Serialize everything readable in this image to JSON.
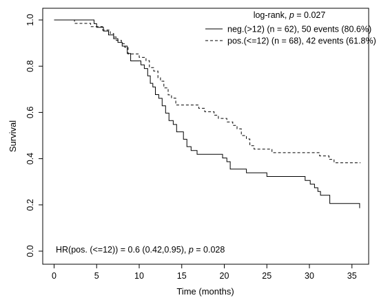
{
  "chart_data": {
    "type": "line",
    "subtype": "kaplan-meier",
    "xlabel": "Time (months)",
    "ylabel": "Survival",
    "xlim": [
      0,
      36
    ],
    "ylim": [
      0,
      1
    ],
    "x_ticks": [
      "0",
      "5",
      "10",
      "15",
      "20",
      "25",
      "30",
      "35"
    ],
    "y_ticks": [
      "0.0",
      "0.2",
      "0.4",
      "0.6",
      "0.8",
      "1.0"
    ],
    "grid": false,
    "legend": {
      "position": "top-right",
      "title_prefix": "log-rank,",
      "title_p": "p",
      "title_value": "= 0.027"
    },
    "annotation": {
      "prefix": "HR(pos. (<=12)) = 0.6 (0.42,0.95),",
      "p": "p",
      "value": "= 0.028"
    },
    "series": [
      {
        "name": "neg.(>12) (n = 62), 50 events (80.6%)",
        "line_style": "solid",
        "points": [
          [
            0,
            1.0
          ],
          [
            4.7,
            1.0
          ],
          [
            4.7,
            0.984
          ],
          [
            5.0,
            0.984
          ],
          [
            5.0,
            0.968
          ],
          [
            5.8,
            0.968
          ],
          [
            5.8,
            0.952
          ],
          [
            6.4,
            0.952
          ],
          [
            6.4,
            0.935
          ],
          [
            7.0,
            0.935
          ],
          [
            7.0,
            0.919
          ],
          [
            7.5,
            0.919
          ],
          [
            7.5,
            0.903
          ],
          [
            8.0,
            0.903
          ],
          [
            8.0,
            0.887
          ],
          [
            8.6,
            0.887
          ],
          [
            8.6,
            0.855
          ],
          [
            9.0,
            0.855
          ],
          [
            9.0,
            0.823
          ],
          [
            10.2,
            0.823
          ],
          [
            10.2,
            0.806
          ],
          [
            10.6,
            0.806
          ],
          [
            10.6,
            0.79
          ],
          [
            11.0,
            0.79
          ],
          [
            11.0,
            0.758
          ],
          [
            11.3,
            0.758
          ],
          [
            11.3,
            0.726
          ],
          [
            11.6,
            0.726
          ],
          [
            11.6,
            0.71
          ],
          [
            11.9,
            0.71
          ],
          [
            11.9,
            0.677
          ],
          [
            12.3,
            0.677
          ],
          [
            12.3,
            0.661
          ],
          [
            12.7,
            0.661
          ],
          [
            12.7,
            0.629
          ],
          [
            13.1,
            0.629
          ],
          [
            13.1,
            0.597
          ],
          [
            13.5,
            0.597
          ],
          [
            13.5,
            0.565
          ],
          [
            14.0,
            0.565
          ],
          [
            14.0,
            0.548
          ],
          [
            14.4,
            0.548
          ],
          [
            14.4,
            0.516
          ],
          [
            15.2,
            0.516
          ],
          [
            15.2,
            0.484
          ],
          [
            15.6,
            0.484
          ],
          [
            15.6,
            0.452
          ],
          [
            16.1,
            0.452
          ],
          [
            16.1,
            0.435
          ],
          [
            16.8,
            0.435
          ],
          [
            16.8,
            0.419
          ],
          [
            19.8,
            0.419
          ],
          [
            19.8,
            0.403
          ],
          [
            20.3,
            0.403
          ],
          [
            20.3,
            0.387
          ],
          [
            20.7,
            0.387
          ],
          [
            20.7,
            0.355
          ],
          [
            22.6,
            0.355
          ],
          [
            22.6,
            0.339
          ],
          [
            25.0,
            0.339
          ],
          [
            25.0,
            0.323
          ],
          [
            29.5,
            0.323
          ],
          [
            29.5,
            0.306
          ],
          [
            30.1,
            0.306
          ],
          [
            30.1,
            0.29
          ],
          [
            30.6,
            0.29
          ],
          [
            30.6,
            0.274
          ],
          [
            31.0,
            0.274
          ],
          [
            31.0,
            0.258
          ],
          [
            31.3,
            0.258
          ],
          [
            31.3,
            0.242
          ],
          [
            32.4,
            0.242
          ],
          [
            32.4,
            0.206
          ],
          [
            35.9,
            0.206
          ],
          [
            35.9,
            0.186
          ]
        ]
      },
      {
        "name": "pos.(<=12) (n = 68), 42 events (61.8%)",
        "line_style": "dashed",
        "points": [
          [
            0,
            1.0
          ],
          [
            2.4,
            1.0
          ],
          [
            2.4,
            0.985
          ],
          [
            4.3,
            0.985
          ],
          [
            4.3,
            0.971
          ],
          [
            5.7,
            0.971
          ],
          [
            5.7,
            0.956
          ],
          [
            6.6,
            0.956
          ],
          [
            6.6,
            0.941
          ],
          [
            7.0,
            0.941
          ],
          [
            7.0,
            0.926
          ],
          [
            7.3,
            0.926
          ],
          [
            7.3,
            0.912
          ],
          [
            7.9,
            0.912
          ],
          [
            7.9,
            0.897
          ],
          [
            8.3,
            0.897
          ],
          [
            8.3,
            0.882
          ],
          [
            8.7,
            0.882
          ],
          [
            8.7,
            0.853
          ],
          [
            10.0,
            0.853
          ],
          [
            10.0,
            0.838
          ],
          [
            10.8,
            0.838
          ],
          [
            10.8,
            0.824
          ],
          [
            11.2,
            0.824
          ],
          [
            11.2,
            0.794
          ],
          [
            11.7,
            0.794
          ],
          [
            11.7,
            0.779
          ],
          [
            12.2,
            0.779
          ],
          [
            12.2,
            0.75
          ],
          [
            12.5,
            0.75
          ],
          [
            12.5,
            0.735
          ],
          [
            12.9,
            0.735
          ],
          [
            12.9,
            0.706
          ],
          [
            13.4,
            0.706
          ],
          [
            13.4,
            0.676
          ],
          [
            13.8,
            0.676
          ],
          [
            13.8,
            0.662
          ],
          [
            14.3,
            0.662
          ],
          [
            14.3,
            0.632
          ],
          [
            17.0,
            0.632
          ],
          [
            17.0,
            0.618
          ],
          [
            17.7,
            0.618
          ],
          [
            17.7,
            0.603
          ],
          [
            18.8,
            0.603
          ],
          [
            18.8,
            0.588
          ],
          [
            19.3,
            0.588
          ],
          [
            19.3,
            0.574
          ],
          [
            20.3,
            0.574
          ],
          [
            20.3,
            0.559
          ],
          [
            21.0,
            0.559
          ],
          [
            21.0,
            0.544
          ],
          [
            21.5,
            0.544
          ],
          [
            21.5,
            0.529
          ],
          [
            22.0,
            0.529
          ],
          [
            22.0,
            0.5
          ],
          [
            22.6,
            0.5
          ],
          [
            22.6,
            0.485
          ],
          [
            23.0,
            0.485
          ],
          [
            23.0,
            0.456
          ],
          [
            23.5,
            0.456
          ],
          [
            23.5,
            0.441
          ],
          [
            25.6,
            0.441
          ],
          [
            25.6,
            0.426
          ],
          [
            31.2,
            0.426
          ],
          [
            31.2,
            0.412
          ],
          [
            32.3,
            0.412
          ],
          [
            32.3,
            0.397
          ],
          [
            32.9,
            0.397
          ],
          [
            32.9,
            0.382
          ],
          [
            36.0,
            0.382
          ]
        ]
      }
    ]
  }
}
